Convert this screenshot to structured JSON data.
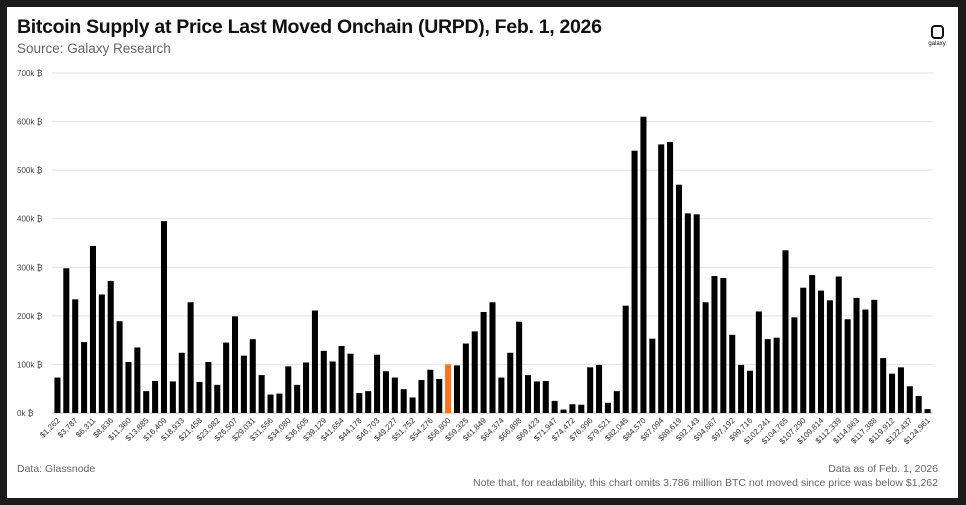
{
  "header": {
    "title": "Bitcoin Supply at Price Last Moved Onchain (URPD), Feb. 1, 2026",
    "subtitle": "Source: Galaxy Research",
    "logo_text": "galaxy"
  },
  "footer": {
    "left": "Data: Glassnode",
    "right_line1": "Data as of Feb. 1, 2026",
    "right_line2": "Note that, for readability, this chart omits 3.786 million BTC not moved since price was below $1,262"
  },
  "chart_data": {
    "type": "bar",
    "title": "Bitcoin Supply at Price Last Moved Onchain (URPD), Feb. 1, 2026",
    "xlabel": "",
    "ylabel": "",
    "ylim": [
      0,
      700000
    ],
    "yticks": [
      0,
      100000,
      200000,
      300000,
      400000,
      500000,
      600000,
      700000
    ],
    "ytick_labels": [
      "0k ₿",
      "100k ₿",
      "200k ₿",
      "300k ₿",
      "400k ₿",
      "500k ₿",
      "600k ₿",
      "700k ₿"
    ],
    "grid": true,
    "bar_color": "#000000",
    "highlight_color": "#f7731c",
    "highlight_index": 44,
    "tick_labels": [
      "$1,262",
      "$3,787",
      "$6,311",
      "$8,836",
      "$11,360",
      "$13,885",
      "$16,409",
      "$18,933",
      "$21,458",
      "$23,982",
      "$26,507",
      "$29,031",
      "$31,556",
      "$34,080",
      "$36,605",
      "$39,129",
      "$41,654",
      "$44,178",
      "$46,703",
      "$49,227",
      "$51,752",
      "$54,276",
      "$56,800",
      "$59,325",
      "$61,849",
      "$64,374",
      "$66,898",
      "$69,423",
      "$71,947",
      "$74,472",
      "$76,996",
      "$79,521",
      "$82,045",
      "$84,570",
      "$87,094",
      "$89,619",
      "$92,143",
      "$94,667",
      "$97,192",
      "$99,716",
      "$102,241",
      "$104,765",
      "$107,290",
      "$109,814",
      "$112,339",
      "$114,863",
      "$117,388",
      "$119,912",
      "$122,437",
      "$124,961"
    ],
    "values": [
      73000,
      298000,
      234000,
      146000,
      344000,
      244000,
      272000,
      189000,
      105000,
      135000,
      45000,
      66000,
      395000,
      65000,
      124000,
      228000,
      64000,
      105000,
      58000,
      145000,
      199000,
      118000,
      152000,
      78000,
      38000,
      40000,
      96000,
      58000,
      104000,
      211000,
      128000,
      106000,
      138000,
      122000,
      41000,
      45000,
      120000,
      86000,
      73000,
      49000,
      32000,
      68000,
      89000,
      70000,
      100000,
      98000,
      143000,
      168000,
      208000,
      228000,
      73000,
      124000,
      188000,
      78000,
      65000,
      66000,
      25000,
      7000,
      18000,
      17000,
      94000,
      99000,
      21000,
      45000,
      221000,
      540000,
      610000,
      153000,
      553000,
      558000,
      470000,
      411000,
      409000,
      228000,
      282000,
      278000,
      161000,
      99000,
      87000,
      209000,
      152000,
      155000,
      335000,
      197000,
      258000,
      284000,
      252000,
      232000,
      281000,
      193000,
      237000,
      213000,
      233000,
      113000,
      81000,
      94000,
      55000,
      35000,
      8000
    ]
  }
}
